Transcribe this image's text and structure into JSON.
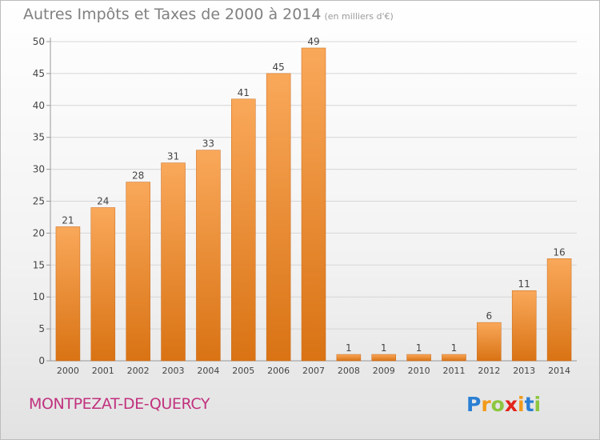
{
  "chart_data": {
    "type": "bar",
    "title": "Autres Impôts et Taxes de 2000 à 2014",
    "unit": "(en milliers d'€)",
    "categories": [
      "2000",
      "2001",
      "2002",
      "2003",
      "2004",
      "2005",
      "2006",
      "2007",
      "2008",
      "2009",
      "2010",
      "2011",
      "2012",
      "2013",
      "2014"
    ],
    "values": [
      21,
      24,
      28,
      31,
      33,
      41,
      45,
      49,
      1,
      1,
      1,
      1,
      6,
      11,
      16
    ],
    "ylim": [
      0,
      50
    ],
    "yticks": [
      0,
      5,
      10,
      15,
      20,
      25,
      30,
      35,
      40,
      45,
      50
    ],
    "grid": true,
    "bar_color": "#f0922e"
  },
  "location": "MONTPEZAT-DE-QUERCY",
  "logo": {
    "letters": [
      "P",
      "r",
      "o",
      "x",
      "i",
      "t",
      "i"
    ],
    "colors": [
      "#2a7fd4",
      "#f29a1a",
      "#8dc63f",
      "#e2231a",
      "#f29a1a",
      "#2a7fd4",
      "#8dc63f"
    ]
  }
}
